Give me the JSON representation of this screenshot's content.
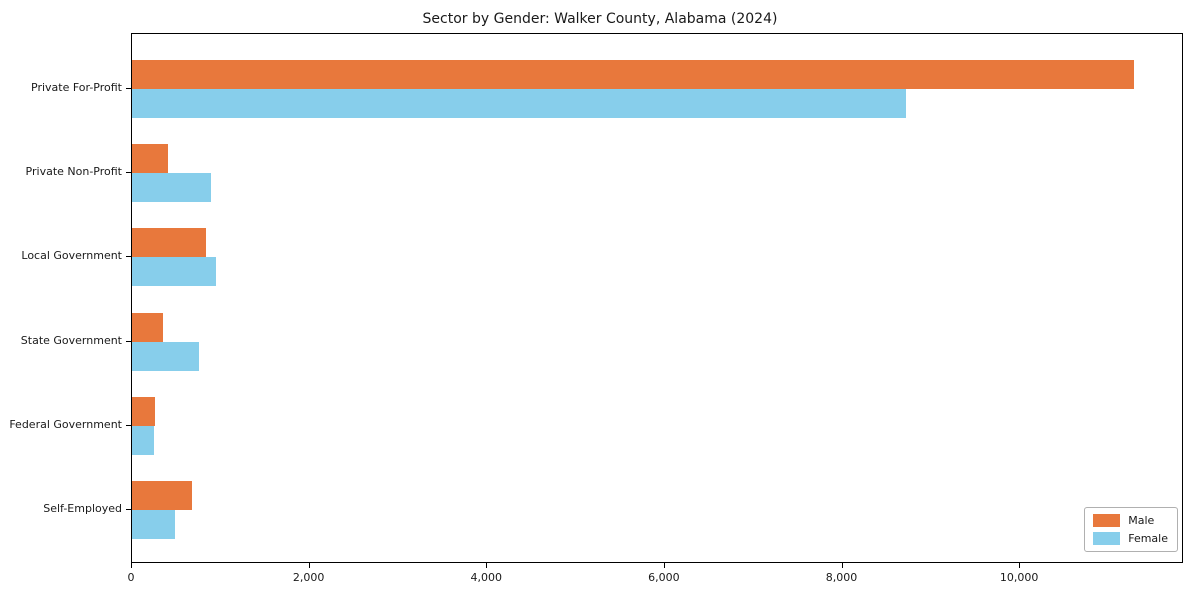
{
  "chart_data": {
    "type": "bar",
    "orientation": "horizontal",
    "title": "Sector by Gender: Walker County, Alabama (2024)",
    "categories": [
      "Private For-Profit",
      "Private Non-Profit",
      "Local Government",
      "State Government",
      "Federal Government",
      "Self-Employed"
    ],
    "series": [
      {
        "name": "Male",
        "color": "#e8783c",
        "values": [
          11280,
          410,
          835,
          345,
          260,
          675
        ]
      },
      {
        "name": "Female",
        "color": "#87ceeb",
        "values": [
          8720,
          890,
          950,
          755,
          245,
          485
        ]
      }
    ],
    "xlabel": "",
    "ylabel": "",
    "xlim": [
      0,
      11845
    ],
    "x_ticks": {
      "values": [
        0,
        2000,
        4000,
        6000,
        8000,
        10000
      ],
      "labels": [
        "0",
        "2,000",
        "4,000",
        "6,000",
        "8,000",
        "10,000"
      ]
    },
    "grid": false,
    "legend": {
      "position": "lower right",
      "entries": [
        "Male",
        "Female"
      ]
    }
  },
  "styles": {
    "male_color": "#e8783c",
    "female_color": "#87ceeb",
    "axis_color": "#000000",
    "text_color": "#1a1a1a",
    "background": "#ffffff"
  }
}
